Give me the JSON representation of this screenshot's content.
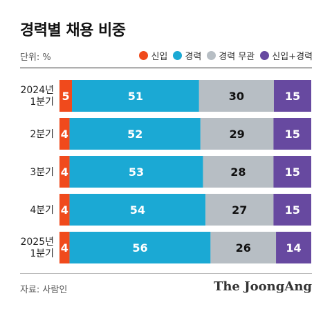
{
  "title": "경력별 채용 비중",
  "unit": "단위: %",
  "source": "자료: 사람인",
  "logo": "The JoongAng",
  "colors": {
    "new": "#f04a1c",
    "experienced": "#1ba9d4",
    "either": "#b7bec4",
    "both": "#6749a0"
  },
  "chart_data": {
    "type": "bar",
    "orientation": "horizontal",
    "stacked": true,
    "normalized": true,
    "categories": [
      [
        "2024년",
        "1분기"
      ],
      [
        "2분기"
      ],
      [
        "3분기"
      ],
      [
        "4분기"
      ],
      [
        "2025년",
        "1분기"
      ]
    ],
    "series": [
      {
        "name": "신입",
        "color": "#f04a1c",
        "values": [
          5,
          4,
          4,
          4,
          4
        ]
      },
      {
        "name": "경력",
        "color": "#1ba9d4",
        "values": [
          51,
          52,
          53,
          54,
          56
        ]
      },
      {
        "name": "경력 무관",
        "color": "#b7bec4",
        "values": [
          30,
          29,
          28,
          27,
          26
        ]
      },
      {
        "name": "신입+경력",
        "color": "#6749a0",
        "values": [
          15,
          15,
          15,
          15,
          14
        ]
      }
    ],
    "legend_position": "top-right",
    "data_labels": true
  }
}
